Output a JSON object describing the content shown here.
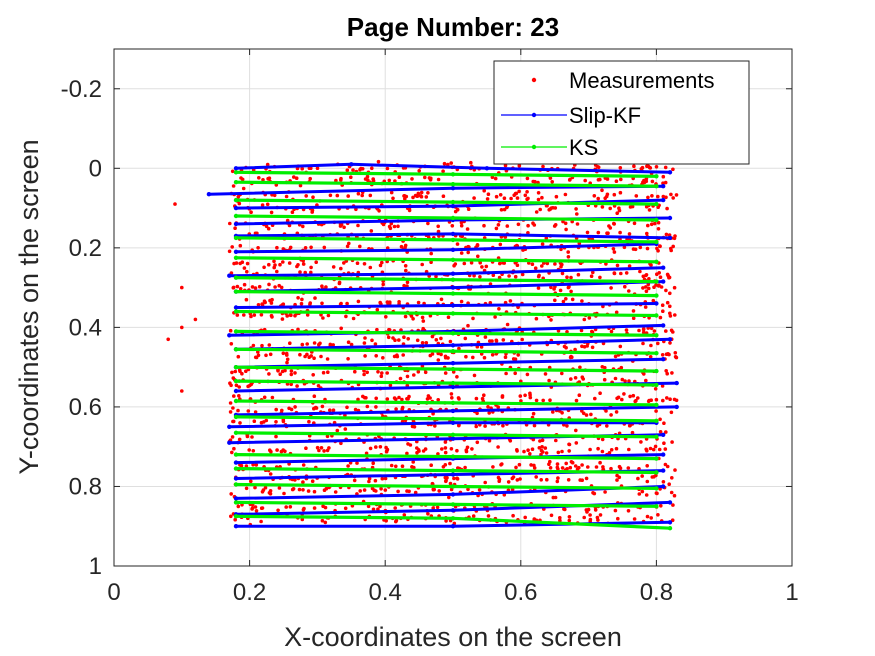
{
  "chart_data": {
    "type": "scatter",
    "title": "Page Number: 23",
    "xlabel": "X-coordinates on the screen",
    "ylabel": "Y-coordinates on the screen",
    "xlim": [
      0,
      1
    ],
    "ylim": [
      -0.3,
      1
    ],
    "y_reversed": true,
    "grid": true,
    "legend_position": "top-right",
    "xticks": [
      0,
      0.2,
      0.4,
      0.6,
      0.8,
      1
    ],
    "xtick_labels": [
      "0",
      "0.2",
      "0.4",
      "0.6",
      "0.8",
      "1"
    ],
    "yticks": [
      -0.2,
      0,
      0.2,
      0.4,
      0.6,
      0.8,
      1
    ],
    "ytick_labels": [
      "-0.2",
      "0",
      "0.2",
      "0.4",
      "0.6",
      "0.8",
      "1"
    ],
    "series": [
      {
        "name": "Measurements",
        "color": "#ff0000",
        "style": "points",
        "x_range": [
          0.07,
          0.84
        ],
        "row_y": [
          0.0,
          0.03,
          0.07,
          0.1,
          0.14,
          0.17,
          0.2,
          0.24,
          0.27,
          0.3,
          0.34,
          0.37,
          0.41,
          0.44,
          0.47,
          0.51,
          0.54,
          0.58,
          0.61,
          0.64,
          0.68,
          0.71,
          0.75,
          0.78,
          0.81,
          0.85,
          0.88
        ],
        "outliers": [
          [
            0.09,
            0.09
          ],
          [
            0.1,
            0.3
          ],
          [
            0.1,
            0.4
          ],
          [
            0.12,
            0.38
          ],
          [
            0.08,
            0.43
          ],
          [
            0.1,
            0.56
          ]
        ]
      },
      {
        "name": "Slip-KF",
        "color": "#0000ff",
        "style": "line-with-dots",
        "lines": [
          {
            "x": [
              0.18,
              0.35,
              0.55,
              0.82
            ],
            "y": [
              0.0,
              -0.01,
              0.0,
              0.01
            ]
          },
          {
            "x": [
              0.14,
              0.5,
              0.81
            ],
            "y": [
              0.065,
              0.05,
              0.045
            ]
          },
          {
            "x": [
              0.18,
              0.5,
              0.81
            ],
            "y": [
              0.1,
              0.095,
              0.08
            ]
          },
          {
            "x": [
              0.18,
              0.5,
              0.82
            ],
            "y": [
              0.14,
              0.13,
              0.125
            ]
          },
          {
            "x": [
              0.18,
              0.5,
              0.82
            ],
            "y": [
              0.17,
              0.165,
              0.175
            ]
          },
          {
            "x": [
              0.18,
              0.5,
              0.8
            ],
            "y": [
              0.21,
              0.205,
              0.19
            ]
          },
          {
            "x": [
              0.17,
              0.5,
              0.81
            ],
            "y": [
              0.27,
              0.265,
              0.25
            ]
          },
          {
            "x": [
              0.18,
              0.5,
              0.81
            ],
            "y": [
              0.31,
              0.3,
              0.285
            ]
          },
          {
            "x": [
              0.18,
              0.5,
              0.8
            ],
            "y": [
              0.35,
              0.345,
              0.34
            ]
          },
          {
            "x": [
              0.17,
              0.5,
              0.81
            ],
            "y": [
              0.42,
              0.41,
              0.395
            ]
          },
          {
            "x": [
              0.18,
              0.5,
              0.82
            ],
            "y": [
              0.455,
              0.445,
              0.43
            ]
          },
          {
            "x": [
              0.18,
              0.5,
              0.81
            ],
            "y": [
              0.5,
              0.49,
              0.48
            ]
          },
          {
            "x": [
              0.18,
              0.5,
              0.83
            ],
            "y": [
              0.56,
              0.55,
              0.54
            ]
          },
          {
            "x": [
              0.18,
              0.5,
              0.83
            ],
            "y": [
              0.62,
              0.61,
              0.6
            ]
          },
          {
            "x": [
              0.17,
              0.5,
              0.8
            ],
            "y": [
              0.65,
              0.64,
              0.64
            ]
          },
          {
            "x": [
              0.17,
              0.5,
              0.81
            ],
            "y": [
              0.69,
              0.68,
              0.67
            ]
          },
          {
            "x": [
              0.18,
              0.5,
              0.81
            ],
            "y": [
              0.74,
              0.73,
              0.72
            ]
          },
          {
            "x": [
              0.18,
              0.5,
              0.81
            ],
            "y": [
              0.78,
              0.77,
              0.76
            ]
          },
          {
            "x": [
              0.18,
              0.5,
              0.81
            ],
            "y": [
              0.83,
              0.82,
              0.8
            ]
          },
          {
            "x": [
              0.18,
              0.5,
              0.82
            ],
            "y": [
              0.87,
              0.86,
              0.84
            ]
          },
          {
            "x": [
              0.18,
              0.5,
              0.82
            ],
            "y": [
              0.9,
              0.9,
              0.89
            ]
          }
        ]
      },
      {
        "name": "KS",
        "color": "#00ee00",
        "style": "line-with-dots",
        "lines": [
          {
            "x": [
              0.18,
              0.5,
              0.8
            ],
            "y": [
              0.01,
              0.015,
              0.02
            ]
          },
          {
            "x": [
              0.18,
              0.5,
              0.8
            ],
            "y": [
              0.035,
              0.04,
              0.045
            ]
          },
          {
            "x": [
              0.18,
              0.5,
              0.8
            ],
            "y": [
              0.08,
              0.085,
              0.09
            ]
          },
          {
            "x": [
              0.18,
              0.5,
              0.8
            ],
            "y": [
              0.12,
              0.125,
              0.13
            ]
          },
          {
            "x": [
              0.18,
              0.5,
              0.8
            ],
            "y": [
              0.175,
              0.18,
              0.185
            ]
          },
          {
            "x": [
              0.18,
              0.5,
              0.8
            ],
            "y": [
              0.225,
              0.23,
              0.235
            ]
          },
          {
            "x": [
              0.18,
              0.5,
              0.8
            ],
            "y": [
              0.275,
              0.28,
              0.285
            ]
          },
          {
            "x": [
              0.18,
              0.5,
              0.8
            ],
            "y": [
              0.31,
              0.315,
              0.32
            ]
          },
          {
            "x": [
              0.18,
              0.5,
              0.8
            ],
            "y": [
              0.36,
              0.365,
              0.37
            ]
          },
          {
            "x": [
              0.18,
              0.5,
              0.8
            ],
            "y": [
              0.41,
              0.415,
              0.42
            ]
          },
          {
            "x": [
              0.18,
              0.5,
              0.8
            ],
            "y": [
              0.455,
              0.46,
              0.465
            ]
          },
          {
            "x": [
              0.18,
              0.5,
              0.8
            ],
            "y": [
              0.5,
              0.505,
              0.51
            ]
          },
          {
            "x": [
              0.18,
              0.5,
              0.8
            ],
            "y": [
              0.535,
              0.54,
              0.545
            ]
          },
          {
            "x": [
              0.18,
              0.5,
              0.8
            ],
            "y": [
              0.585,
              0.59,
              0.595
            ]
          },
          {
            "x": [
              0.18,
              0.5,
              0.8
            ],
            "y": [
              0.625,
              0.63,
              0.635
            ]
          },
          {
            "x": [
              0.18,
              0.5,
              0.8
            ],
            "y": [
              0.665,
              0.67,
              0.675
            ]
          },
          {
            "x": [
              0.18,
              0.5,
              0.8
            ],
            "y": [
              0.72,
              0.725,
              0.73
            ]
          },
          {
            "x": [
              0.18,
              0.5,
              0.8
            ],
            "y": [
              0.755,
              0.76,
              0.765
            ]
          },
          {
            "x": [
              0.18,
              0.5,
              0.8
            ],
            "y": [
              0.795,
              0.8,
              0.805
            ]
          },
          {
            "x": [
              0.18,
              0.5,
              0.8
            ],
            "y": [
              0.84,
              0.845,
              0.85
            ]
          },
          {
            "x": [
              0.18,
              0.5,
              0.82
            ],
            "y": [
              0.875,
              0.88,
              0.905
            ]
          }
        ]
      }
    ]
  }
}
